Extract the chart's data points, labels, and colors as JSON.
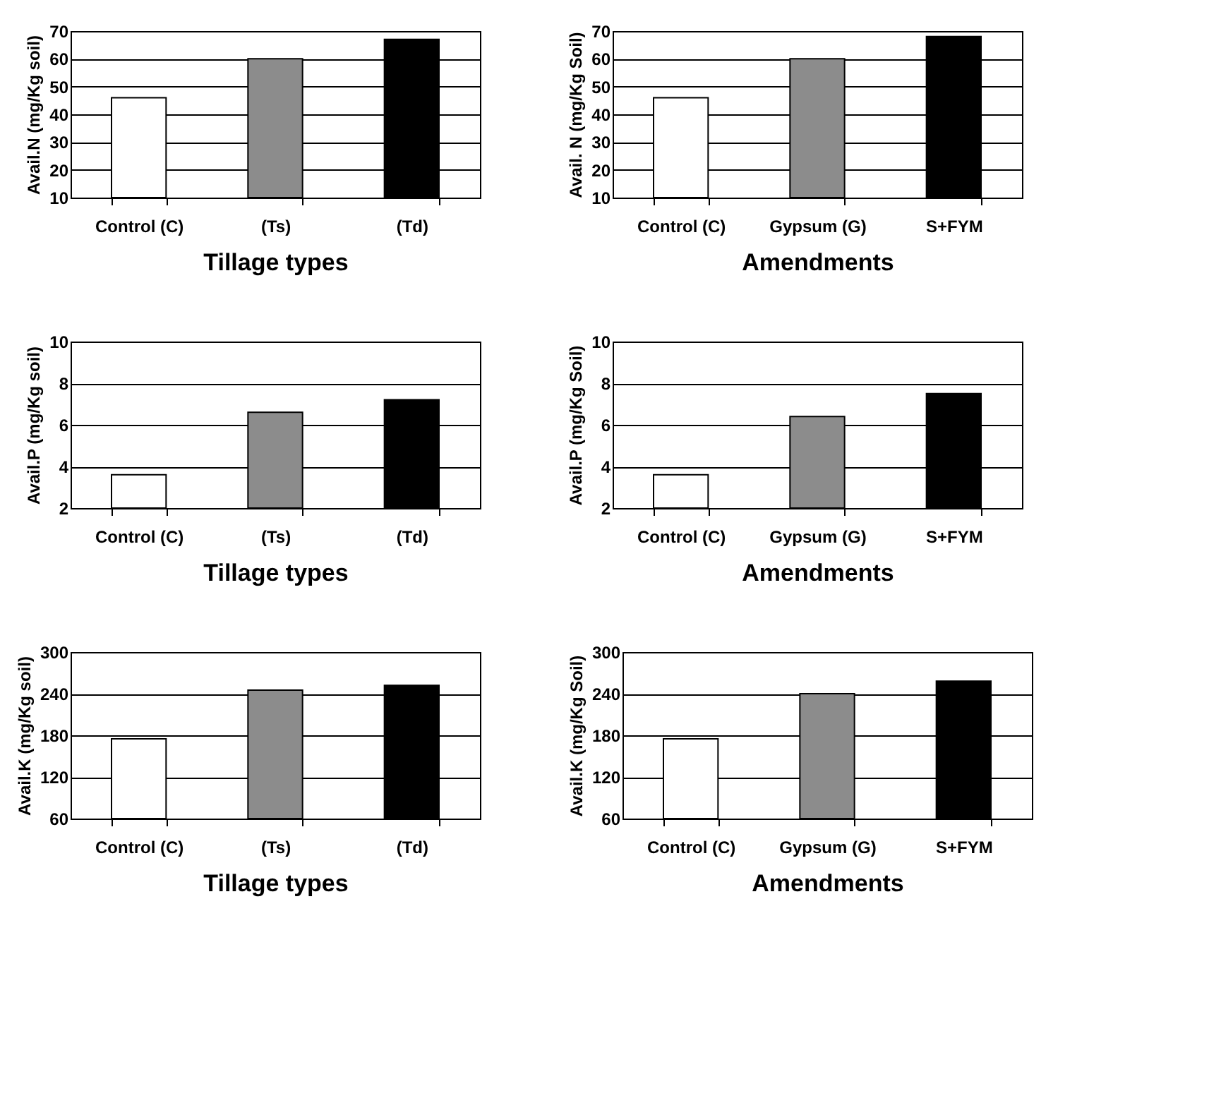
{
  "chart_data": [
    {
      "type": "bar",
      "categories": [
        "Control  (C)",
        "(Ts)",
        "(Td)"
      ],
      "values": [
        46,
        60,
        67
      ],
      "colors": [
        "#ffffff",
        "#8c8c8c",
        "#000000"
      ],
      "xlabel": "Tillage types",
      "ylabel": "Avail.N (mg/Kg soil)",
      "ylim": [
        10,
        70
      ],
      "yticks": [
        10,
        20,
        30,
        40,
        50,
        60,
        70
      ],
      "grid": "y"
    },
    {
      "type": "bar",
      "categories": [
        "Control  (C)",
        "Gypsum (G)",
        "S+FYM"
      ],
      "values": [
        46,
        60,
        68
      ],
      "colors": [
        "#ffffff",
        "#8c8c8c",
        "#000000"
      ],
      "xlabel": "Amendments",
      "ylabel": "Avail. N (mg/Kg Soil)",
      "ylim": [
        10,
        70
      ],
      "yticks": [
        10,
        20,
        30,
        40,
        50,
        60,
        70
      ],
      "grid": "y"
    },
    {
      "type": "bar",
      "categories": [
        "Control  (C)",
        "(Ts)",
        "(Td)"
      ],
      "values": [
        3.6,
        6.6,
        7.2
      ],
      "colors": [
        "#ffffff",
        "#8c8c8c",
        "#000000"
      ],
      "xlabel": "Tillage types",
      "ylabel": "Avail.P (mg/Kg soil)",
      "ylim": [
        2,
        10
      ],
      "yticks": [
        2,
        4,
        6,
        8,
        10
      ],
      "grid": "y"
    },
    {
      "type": "bar",
      "categories": [
        "Control  (C)",
        "Gypsum (G)",
        "S+FYM"
      ],
      "values": [
        3.6,
        6.4,
        7.5
      ],
      "colors": [
        "#ffffff",
        "#8c8c8c",
        "#000000"
      ],
      "xlabel": "Amendments",
      "ylabel": "Avail.P (mg/Kg Soil)",
      "ylim": [
        2,
        10
      ],
      "yticks": [
        2,
        4,
        6,
        8,
        10
      ],
      "grid": "y"
    },
    {
      "type": "bar",
      "categories": [
        "Control  (C)",
        "(Ts)",
        "(Td)"
      ],
      "values": [
        175,
        245,
        252
      ],
      "colors": [
        "#ffffff",
        "#8c8c8c",
        "#000000"
      ],
      "xlabel": "Tillage types",
      "ylabel": "Avail.K (mg/Kg soil)",
      "ylim": [
        60,
        300
      ],
      "yticks": [
        60,
        120,
        180,
        240,
        300
      ],
      "grid": "y"
    },
    {
      "type": "bar",
      "categories": [
        "Control  (C)",
        "Gypsum (G)",
        "S+FYM"
      ],
      "values": [
        175,
        240,
        258
      ],
      "colors": [
        "#ffffff",
        "#8c8c8c",
        "#000000"
      ],
      "xlabel": "Amendments",
      "ylabel": "Avail.K  (mg/Kg Soil)",
      "ylim": [
        60,
        300
      ],
      "yticks": [
        60,
        120,
        180,
        240,
        300
      ],
      "grid": "y"
    }
  ]
}
